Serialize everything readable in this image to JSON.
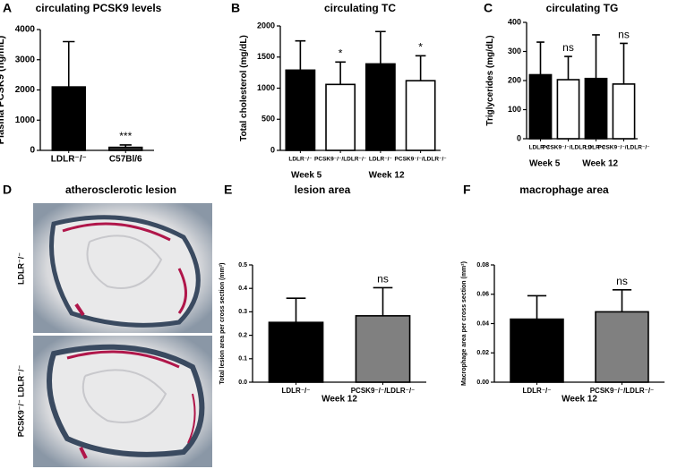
{
  "chart_data": [
    {
      "type": "bar",
      "panel": "A",
      "title": "circulating PCSK9 levels",
      "ylabel": "Plasma PCSK9 (ng/mL)",
      "categories": [
        "LDLR⁻/⁻",
        "C57Bl/6"
      ],
      "values": [
        2100,
        100
      ],
      "errors": [
        1500,
        80
      ],
      "colors": [
        "#000000",
        "#333333"
      ],
      "value_annotations": [
        null,
        "***"
      ],
      "ylim": [
        0,
        4000
      ],
      "yticks": [
        0,
        1000,
        2000,
        3000,
        4000
      ]
    },
    {
      "type": "bar",
      "panel": "B",
      "title": "circulating TC",
      "ylabel": "Total cholesterol (mg/dL)",
      "categories": [
        "LDLR⁻/⁻",
        "PCSK9⁻/⁻/LDLR⁻/⁻",
        "LDLR⁻/⁻",
        "PCSK9⁻/⁻/LDLR⁻/⁻"
      ],
      "groups": [
        "Week 5",
        "Week 12"
      ],
      "values": [
        1290,
        1060,
        1390,
        1120
      ],
      "errors": [
        470,
        360,
        520,
        400
      ],
      "colors": [
        "#000000",
        "#ffffff",
        "#000000",
        "#ffffff"
      ],
      "value_annotations": [
        null,
        "*",
        null,
        "*"
      ],
      "ylim": [
        0,
        2000
      ],
      "yticks": [
        0,
        500,
        1000,
        1500,
        2000
      ]
    },
    {
      "type": "bar",
      "panel": "C",
      "title": "circulating TG",
      "ylabel": "Triglycerides (mg/dL)",
      "categories": [
        "LDLR⁻/⁻",
        "PCSK9⁻/⁻/LDLR⁻/⁻",
        "LDLR⁻/⁻",
        "PCSK9⁻/⁻/LDLR⁻/⁻"
      ],
      "groups": [
        "Week 5",
        "Week 12"
      ],
      "values": [
        220,
        203,
        207,
        188
      ],
      "errors": [
        112,
        80,
        150,
        140
      ],
      "colors": [
        "#000000",
        "#ffffff",
        "#000000",
        "#ffffff"
      ],
      "value_annotations": [
        null,
        "ns",
        null,
        "ns"
      ],
      "ylim": [
        0,
        400
      ],
      "yticks": [
        0,
        100,
        200,
        300,
        400
      ]
    },
    {
      "type": "bar",
      "panel": "E",
      "title": "lesion area",
      "ylabel": "Total lesion area per cross section (mm²)",
      "xlabel": "Week 12",
      "categories": [
        "LDLR⁻/⁻",
        "PCSK9⁻/⁻/LDLR⁻/⁻"
      ],
      "values": [
        0.255,
        0.283
      ],
      "errors": [
        0.103,
        0.12
      ],
      "colors": [
        "#000000",
        "#808080"
      ],
      "value_annotations": [
        null,
        "ns"
      ],
      "ylim": [
        0,
        0.5
      ],
      "yticks": [
        {
          "value": 0,
          "label": "0.0"
        },
        0.1,
        0.2,
        0.3,
        0.4,
        0.5
      ]
    },
    {
      "type": "bar",
      "panel": "F",
      "title": "macrophage area",
      "ylabel": "Macrophage area per cross section (mm²)",
      "xlabel": "Week 12",
      "categories": [
        "LDLR⁻/⁻",
        "PCSK9⁻/⁻/LDLR⁻/⁻"
      ],
      "values": [
        0.043,
        0.048
      ],
      "errors": [
        0.016,
        0.015
      ],
      "colors": [
        "#000000",
        "#808080"
      ],
      "value_annotations": [
        null,
        "ns"
      ],
      "ylim": [
        0,
        0.08
      ],
      "yticks": [
        {
          "value": 0,
          "label": "0.00"
        },
        {
          "value": 0.02,
          "label": "0.02"
        },
        {
          "value": 0.04,
          "label": "0.04"
        },
        {
          "value": 0.06,
          "label": "0.06"
        },
        {
          "value": 0.08,
          "label": "0.08"
        }
      ]
    }
  ],
  "histology": {
    "panel": "D",
    "title": "atherosclerotic lesion",
    "labels": [
      "LDLR⁻/⁻",
      "PCSK9⁻/⁻ LDLR⁻/⁻"
    ]
  }
}
